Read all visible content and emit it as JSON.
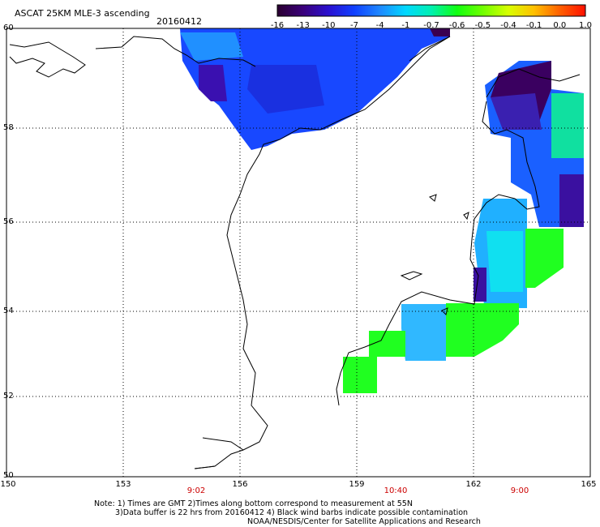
{
  "header": {
    "title": "ASCAT 25KM MLE-3 ascending",
    "date": "20160412"
  },
  "colorbar": {
    "labels": [
      "-16",
      "-13",
      "-10",
      "-7",
      "-4",
      "-1",
      "-0.7",
      "-0.6",
      "-0.5",
      "-0.4",
      "-0.1",
      "0.0",
      "1.0"
    ],
    "colors": [
      "#2a0030",
      "#3a007a",
      "#2a10d0",
      "#1040ff",
      "#1e88ff",
      "#00d8ff",
      "#00f0b0",
      "#10ff10",
      "#70ff00",
      "#d8ff00",
      "#ffc000",
      "#ff6000",
      "#ff1000"
    ]
  },
  "map": {
    "lat_labels": [
      "60",
      "58",
      "56",
      "54",
      "52",
      "50"
    ],
    "lon_labels": [
      "150",
      "153",
      "156",
      "159",
      "162",
      "165"
    ],
    "time_labels": [
      "9:02",
      "10:40",
      "9:00"
    ],
    "colors": {
      "deep": "#3a0050",
      "purple": "#3a10a0",
      "blue": "#1048ff",
      "mid_blue": "#1a70ff",
      "light_blue": "#20a8ff",
      "cyan": "#10d8ff",
      "aqua": "#10f0d0",
      "green": "#20ff20"
    }
  },
  "notes": {
    "line1": "Note: 1) Times are GMT 2)Times along bottom correspond to measurement at 55N",
    "line2": "3)Data buffer is 22 hrs from 20160412 4) Black wind barbs indicate possible contamination",
    "line3": "NOAA/NESDIS/Center for Satellite Applications and Research"
  }
}
